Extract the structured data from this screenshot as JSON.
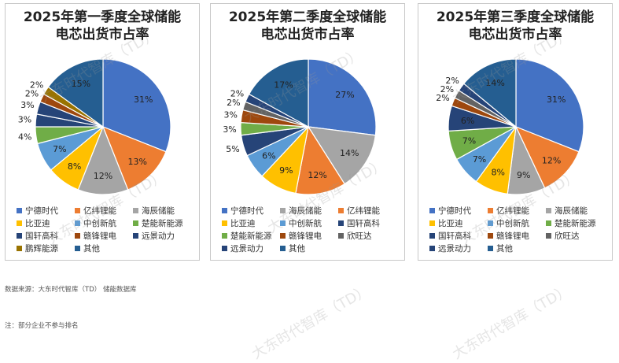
{
  "colors": {
    "宁德时代": "#4472c4",
    "亿纬锂能": "#ed7d31",
    "海辰储能": "#a5a5a5",
    "比亚迪": "#ffc000",
    "中创新航": "#5b9bd5",
    "楚能新能源": "#70ad47",
    "远景动力": "#264478",
    "国轩高科": "#264478",
    "赣锋锂电": "#9e480e",
    "鹏辉能源": "#997300",
    "欣旺达": "#636363",
    "其他": "#255e91"
  },
  "chart_data": [
    {
      "type": "pie",
      "title": "2025年第一季度全球储能电芯出货市占率",
      "series": [
        {
          "name": "宁德时代",
          "value": 31
        },
        {
          "name": "亿纬锂能",
          "value": 13
        },
        {
          "name": "海辰储能",
          "value": 12
        },
        {
          "name": "比亚迪",
          "value": 8
        },
        {
          "name": "中创新航",
          "value": 7
        },
        {
          "name": "楚能新能源",
          "value": 4
        },
        {
          "name": "远景动力",
          "value": 3
        },
        {
          "name": "国轩高科",
          "value": 3
        },
        {
          "name": "赣锋锂电",
          "value": 2
        },
        {
          "name": "鹏辉能源",
          "value": 2
        },
        {
          "name": "其他",
          "value": 15
        }
      ]
    },
    {
      "type": "pie",
      "title": "2025年第二季度全球储能电芯出货市占率",
      "series": [
        {
          "name": "宁德时代",
          "value": 27
        },
        {
          "name": "海辰储能",
          "value": 14
        },
        {
          "name": "亿纬锂能",
          "value": 12
        },
        {
          "name": "比亚迪",
          "value": 9
        },
        {
          "name": "中创新航",
          "value": 6
        },
        {
          "name": "国轩高科",
          "value": 5
        },
        {
          "name": "楚能新能源",
          "value": 3
        },
        {
          "name": "赣锋锂电",
          "value": 3
        },
        {
          "name": "欣旺达",
          "value": 2
        },
        {
          "name": "远景动力",
          "value": 2
        },
        {
          "name": "其他",
          "value": 17
        }
      ]
    },
    {
      "type": "pie",
      "title": "2025年第三季度全球储能电芯出货市占率",
      "series": [
        {
          "name": "宁德时代",
          "value": 31
        },
        {
          "name": "亿纬锂能",
          "value": 12
        },
        {
          "name": "海辰储能",
          "value": 9
        },
        {
          "name": "比亚迪",
          "value": 8
        },
        {
          "name": "中创新航",
          "value": 7
        },
        {
          "name": "楚能新能源",
          "value": 7
        },
        {
          "name": "国轩高科",
          "value": 6
        },
        {
          "name": "赣锋锂电",
          "value": 2
        },
        {
          "name": "欣旺达",
          "value": 2
        },
        {
          "name": "远景动力",
          "value": 2
        },
        {
          "name": "其他",
          "value": 14
        }
      ]
    }
  ],
  "footer": {
    "source": "数据来源：大东时代智库（TD） 储能数据库",
    "note": "注：部分企业不参与排名"
  },
  "watermark": "大东时代智库（TD）"
}
